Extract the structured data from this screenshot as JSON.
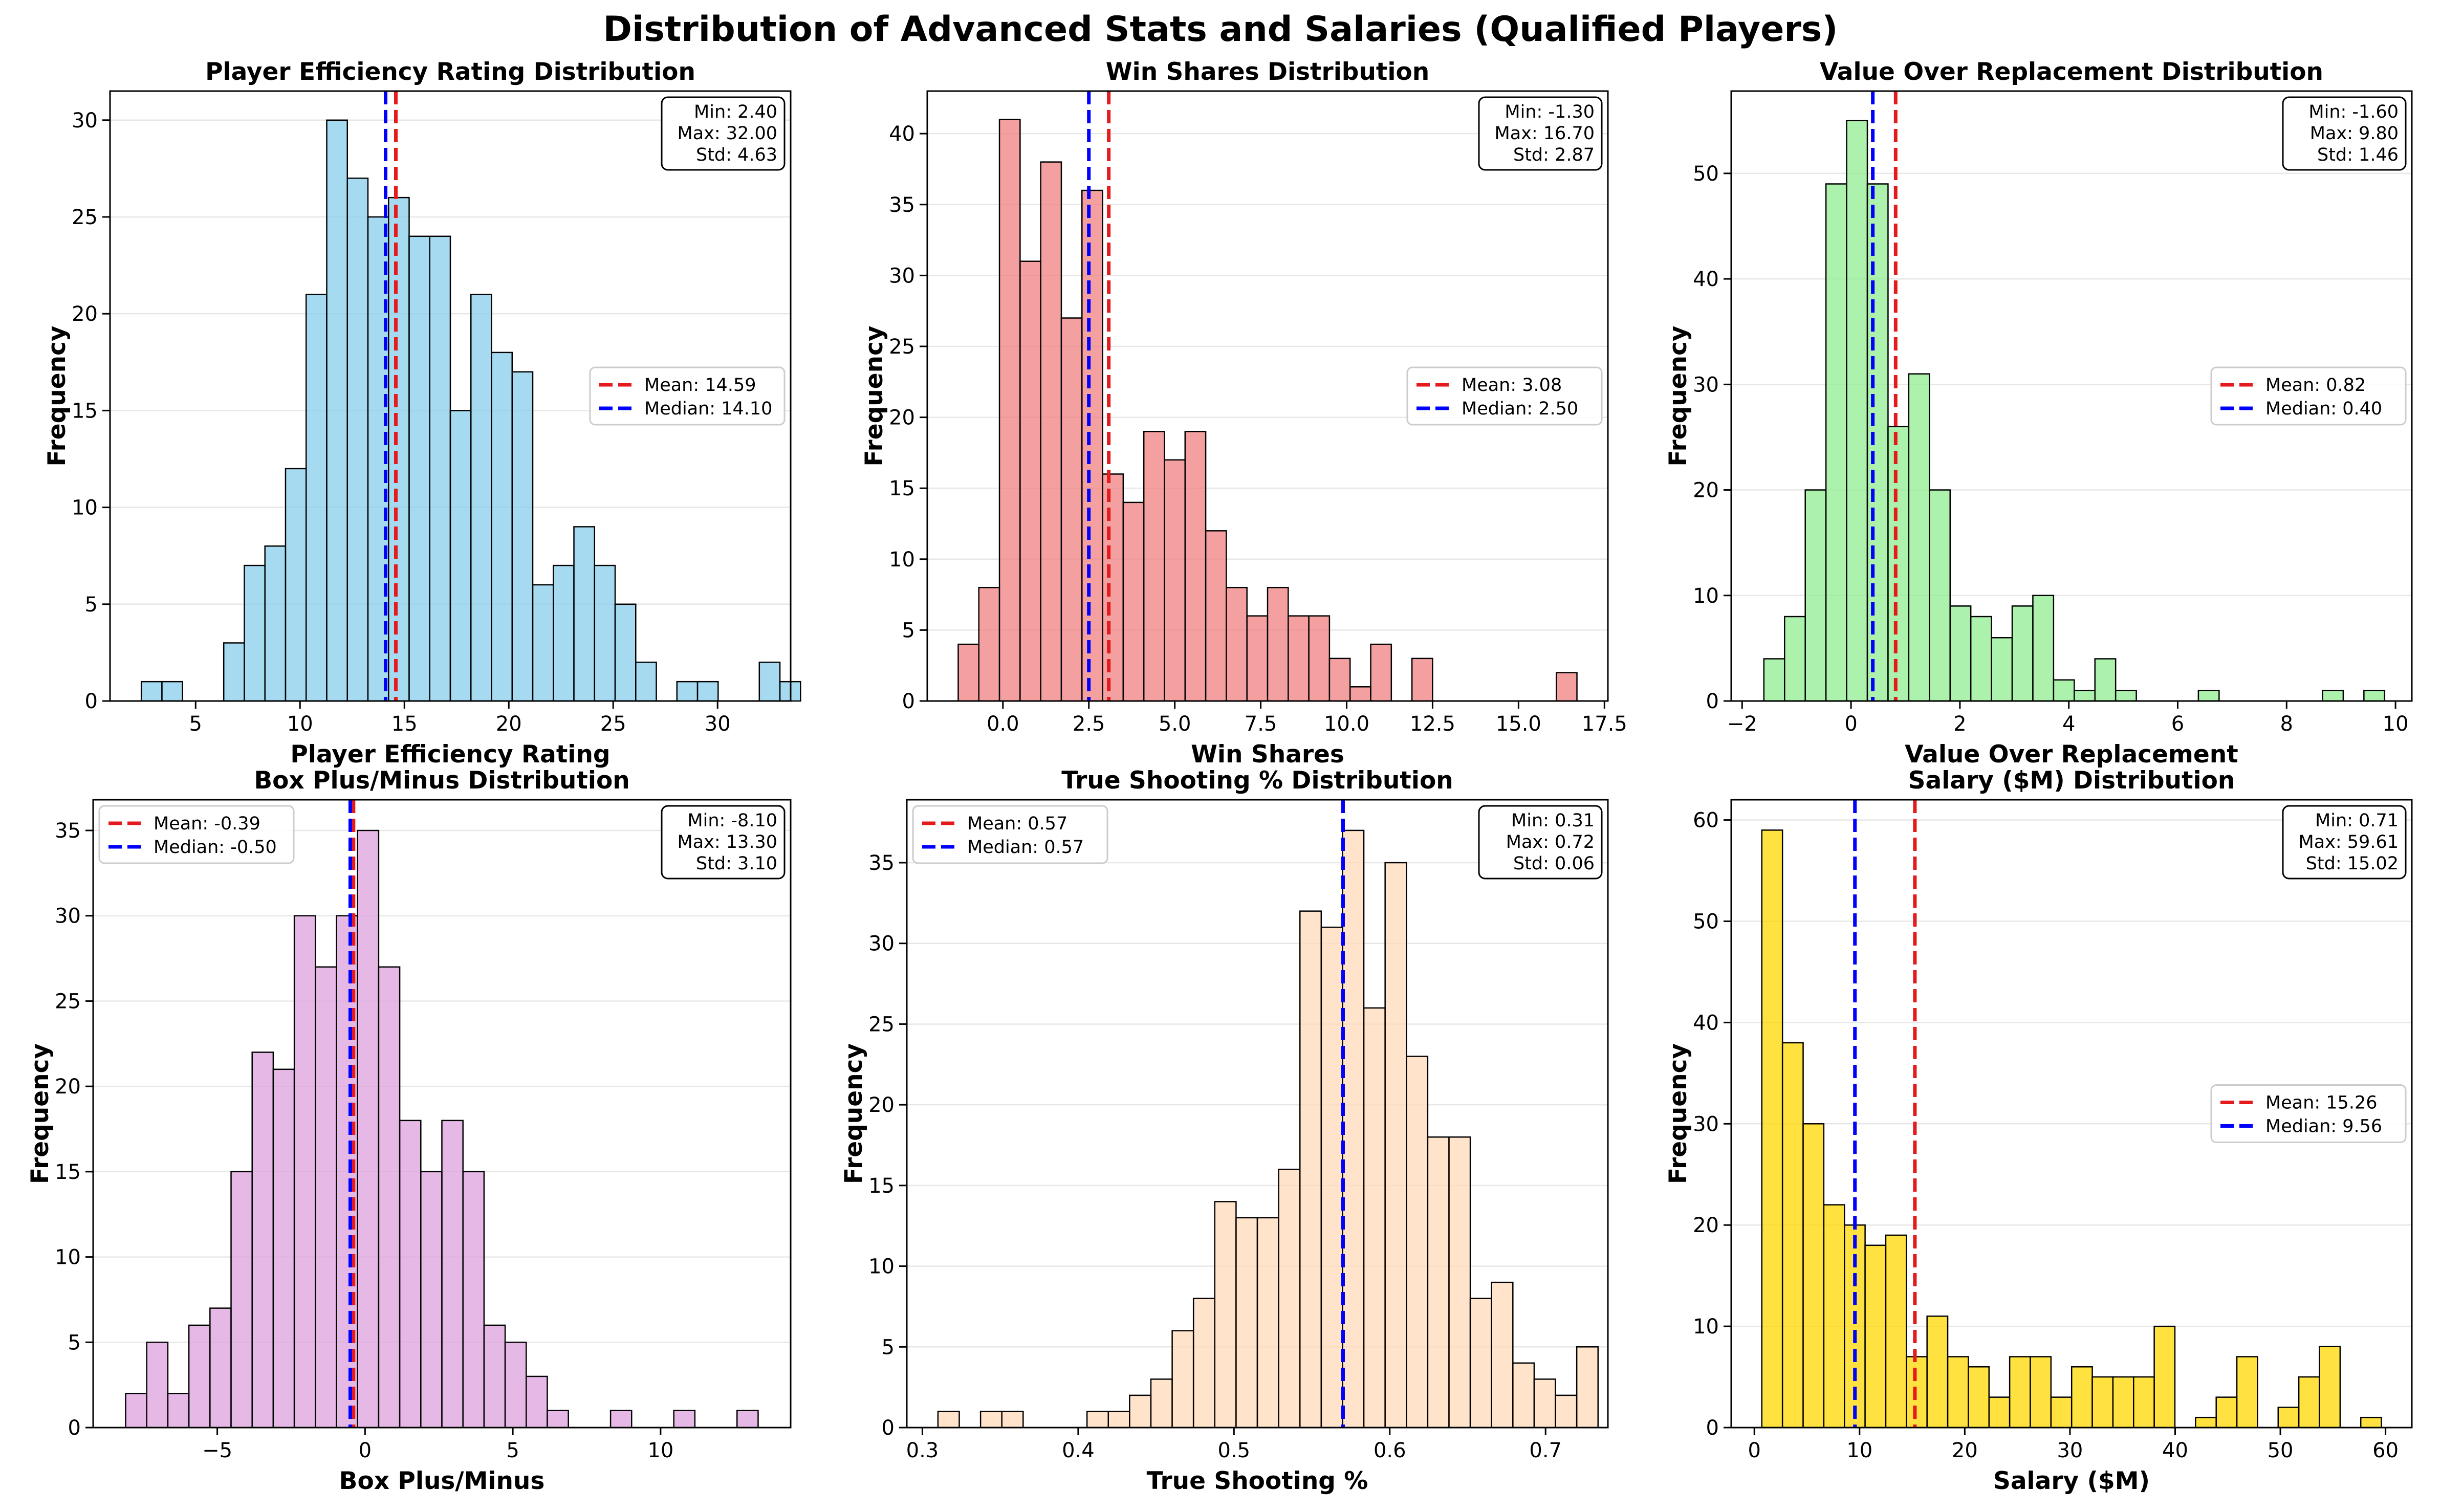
{
  "figure_title": "Distribution of Advanced Stats and Salaries (Qualified Players)",
  "chart_data": [
    {
      "type": "bar",
      "title": "Player Efficiency Rating Distribution",
      "xlabel": "Player Efficiency Rating",
      "ylabel": "Frequency",
      "color": "#87CEEB",
      "bin_start": 2.4,
      "bin_width": 0.98667,
      "values": [
        1,
        1,
        0,
        0,
        3,
        7,
        8,
        12,
        21,
        30,
        27,
        25,
        26,
        24,
        24,
        15,
        21,
        18,
        17,
        6,
        7,
        9,
        7,
        5,
        2,
        0,
        1,
        1,
        0,
        0,
        2,
        1
      ],
      "xlim": [
        0.9,
        33.5
      ],
      "ylim": [
        0,
        31.5
      ],
      "xticks": [
        5,
        10,
        15,
        20,
        25,
        30
      ],
      "xtick_labels": [
        "5",
        "10",
        "15",
        "20",
        "25",
        "30"
      ],
      "yticks": [
        0,
        5,
        10,
        15,
        20,
        25,
        30
      ],
      "ytick_labels": [
        "0",
        "5",
        "10",
        "15",
        "20",
        "25",
        "30"
      ],
      "mean": 14.59,
      "median": 14.1,
      "legend": {
        "mean_label": "Mean: 14.59",
        "median_label": "Median: 14.10",
        "position": "center-right"
      },
      "stats": {
        "min": "Min: 2.40",
        "max": "Max: 32.00",
        "std": "Std: 4.63"
      }
    },
    {
      "type": "bar",
      "title": "Win Shares Distribution",
      "xlabel": "Win Shares",
      "ylabel": "Frequency",
      "color": "#F08080",
      "bin_start": -1.3,
      "bin_width": 0.6,
      "values": [
        4,
        8,
        41,
        31,
        38,
        27,
        36,
        16,
        14,
        19,
        17,
        19,
        12,
        8,
        6,
        8,
        6,
        6,
        3,
        1,
        4,
        0,
        3,
        0,
        0,
        0,
        0,
        0,
        0,
        2
      ],
      "xlim": [
        -2.2,
        17.6
      ],
      "ylim": [
        0,
        43
      ],
      "xticks": [
        0,
        2.5,
        5,
        7.5,
        10,
        12.5,
        15,
        17.5
      ],
      "xtick_labels": [
        "0.0",
        "2.5",
        "5.0",
        "7.5",
        "10.0",
        "12.5",
        "15.0",
        "17.5"
      ],
      "yticks": [
        0,
        5,
        10,
        15,
        20,
        25,
        30,
        35,
        40
      ],
      "ytick_labels": [
        "0",
        "5",
        "10",
        "15",
        "20",
        "25",
        "30",
        "35",
        "40"
      ],
      "mean": 3.08,
      "median": 2.5,
      "legend": {
        "mean_label": "Mean: 3.08",
        "median_label": "Median: 2.50",
        "position": "center-right"
      },
      "stats": {
        "min": "Min: -1.30",
        "max": "Max: 16.70",
        "std": "Std: 2.87"
      }
    },
    {
      "type": "bar",
      "title": "Value Over Replacement Distribution",
      "xlabel": "Value Over Replacement",
      "ylabel": "Frequency",
      "color": "#90EE90",
      "bin_start": -1.6,
      "bin_width": 0.38,
      "values": [
        4,
        8,
        20,
        49,
        55,
        49,
        26,
        31,
        20,
        9,
        8,
        6,
        9,
        10,
        2,
        1,
        4,
        1,
        0,
        0,
        0,
        1,
        0,
        0,
        0,
        0,
        0,
        1,
        0,
        1
      ],
      "xlim": [
        -2.2,
        10.3
      ],
      "ylim": [
        0,
        57.8
      ],
      "xticks": [
        -2,
        0,
        2,
        4,
        6,
        8,
        10
      ],
      "xtick_labels": [
        "−2",
        "0",
        "2",
        "4",
        "6",
        "8",
        "10"
      ],
      "yticks": [
        0,
        10,
        20,
        30,
        40,
        50
      ],
      "ytick_labels": [
        "0",
        "10",
        "20",
        "30",
        "40",
        "50"
      ],
      "mean": 0.82,
      "median": 0.4,
      "legend": {
        "mean_label": "Mean: 0.82",
        "median_label": "Median: 0.40",
        "position": "center-right"
      },
      "stats": {
        "min": "Min: -1.60",
        "max": "Max: 9.80",
        "std": "Std: 1.46"
      }
    },
    {
      "type": "bar",
      "title": "Box Plus/Minus Distribution",
      "xlabel": "Box Plus/Minus",
      "ylabel": "Frequency",
      "color": "#DDA0DD",
      "bin_start": -8.1,
      "bin_width": 0.71333,
      "values": [
        2,
        5,
        2,
        6,
        7,
        15,
        22,
        21,
        30,
        27,
        30,
        35,
        27,
        18,
        15,
        18,
        15,
        6,
        5,
        3,
        1,
        0,
        0,
        1,
        0,
        0,
        1,
        0,
        0,
        1
      ],
      "xlim": [
        -9.2,
        14.4
      ],
      "ylim": [
        0,
        36.8
      ],
      "xticks": [
        -5,
        0,
        5,
        10
      ],
      "xtick_labels": [
        "−5",
        "0",
        "5",
        "10"
      ],
      "yticks": [
        0,
        5,
        10,
        15,
        20,
        25,
        30,
        35
      ],
      "ytick_labels": [
        "0",
        "5",
        "10",
        "15",
        "20",
        "25",
        "30",
        "35"
      ],
      "mean": -0.39,
      "median": -0.5,
      "legend": {
        "mean_label": "Mean: -0.39",
        "median_label": "Median: -0.50",
        "position": "upper-left"
      },
      "stats": {
        "min": "Min: -8.10",
        "max": "Max: 13.30",
        "std": "Std: 3.10"
      }
    },
    {
      "type": "bar",
      "title": "True Shooting % Distribution",
      "xlabel": "True Shooting %",
      "ylabel": "Frequency",
      "color": "#FFDAB9",
      "bin_start": 0.31,
      "bin_width": 0.013667,
      "values": [
        1,
        0,
        1,
        1,
        0,
        0,
        0,
        1,
        1,
        2,
        3,
        6,
        8,
        14,
        13,
        13,
        16,
        32,
        31,
        37,
        26,
        35,
        23,
        18,
        18,
        8,
        9,
        4,
        3,
        2,
        5
      ],
      "xlim": [
        0.29,
        0.74
      ],
      "ylim": [
        0,
        38.9
      ],
      "xticks": [
        0.3,
        0.4,
        0.5,
        0.6,
        0.7
      ],
      "xtick_labels": [
        "0.3",
        "0.4",
        "0.5",
        "0.6",
        "0.7"
      ],
      "yticks": [
        0,
        5,
        10,
        15,
        20,
        25,
        30,
        35
      ],
      "ytick_labels": [
        "0",
        "5",
        "10",
        "15",
        "20",
        "25",
        "30",
        "35"
      ],
      "mean": 0.57,
      "median": 0.57,
      "legend": {
        "mean_label": "Mean: 0.57",
        "median_label": "Median: 0.57",
        "position": "upper-left"
      },
      "stats": {
        "min": "Min: 0.31",
        "max": "Max: 0.72",
        "std": "Std: 0.06"
      }
    },
    {
      "type": "bar",
      "title": "Salary ($M) Distribution",
      "xlabel": "Salary ($M)",
      "ylabel": "Frequency",
      "color": "#FFD700",
      "bin_start": 0.71,
      "bin_width": 1.9633,
      "values": [
        59,
        38,
        30,
        22,
        20,
        18,
        19,
        7,
        11,
        7,
        6,
        3,
        7,
        7,
        3,
        6,
        5,
        5,
        5,
        10,
        0,
        1,
        3,
        7,
        0,
        2,
        5,
        8,
        0,
        1
      ],
      "xlim": [
        -2.2,
        62.5
      ],
      "ylim": [
        0,
        62
      ],
      "xticks": [
        0,
        10,
        20,
        30,
        40,
        50,
        60
      ],
      "xtick_labels": [
        "0",
        "10",
        "20",
        "30",
        "40",
        "50",
        "60"
      ],
      "yticks": [
        0,
        10,
        20,
        30,
        40,
        50,
        60
      ],
      "ytick_labels": [
        "0",
        "10",
        "20",
        "30",
        "40",
        "50",
        "60"
      ],
      "mean": 15.26,
      "median": 9.56,
      "legend": {
        "mean_label": "Mean: 15.26",
        "median_label": "Median: 9.56",
        "position": "center-right"
      },
      "stats": {
        "min": "Min: 0.71",
        "max": "Max: 59.61",
        "std": "Std: 15.02"
      }
    }
  ]
}
